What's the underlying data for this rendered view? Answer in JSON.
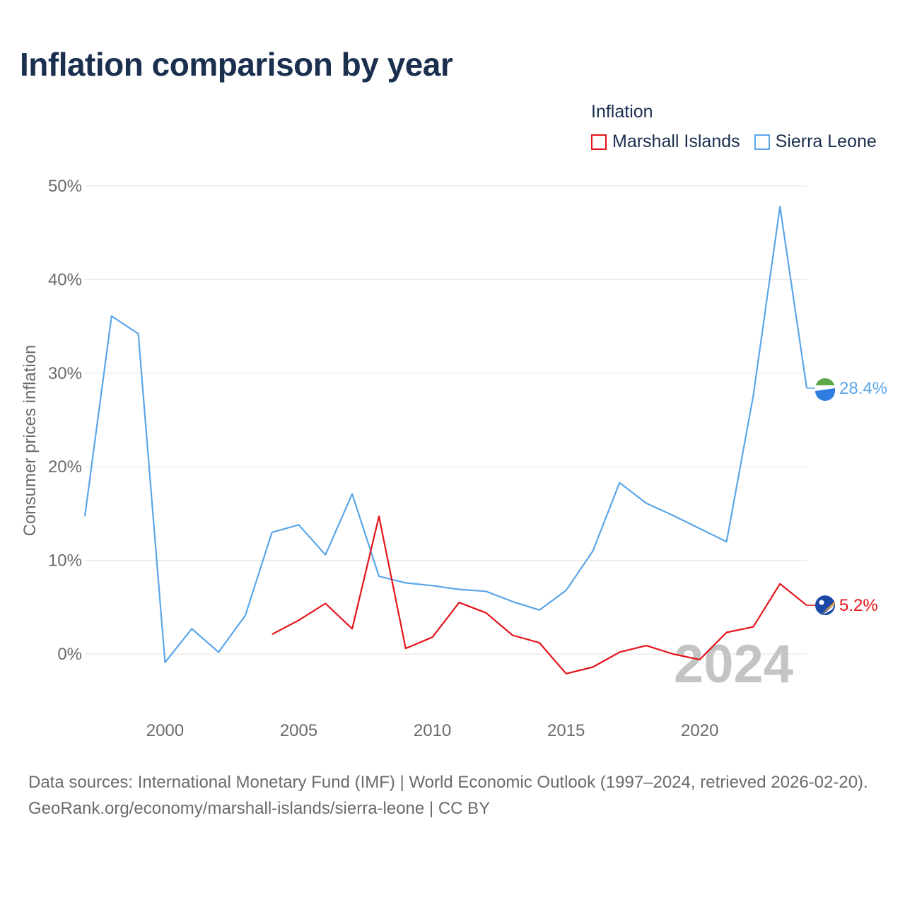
{
  "title": "Inflation comparison by year",
  "legend": {
    "title": "Inflation",
    "items": [
      {
        "name": "Marshall Islands",
        "color": "#e3141b"
      },
      {
        "name": "Sierra Leone",
        "color": "#5aa6e8"
      }
    ]
  },
  "chart_data": {
    "type": "line",
    "ylabel": "Consumer prices inflation",
    "xlabel": "",
    "xlim": [
      1997,
      2024
    ],
    "ylim": [
      -6,
      50
    ],
    "x_ticks": [
      2000,
      2005,
      2010,
      2015,
      2020
    ],
    "y_ticks": [
      {
        "value": 0,
        "label": "0%"
      },
      {
        "value": 10,
        "label": "10%"
      },
      {
        "value": 20,
        "label": "20%"
      },
      {
        "value": 30,
        "label": "30%"
      },
      {
        "value": 40,
        "label": "40%"
      },
      {
        "value": 50,
        "label": "50%"
      }
    ],
    "year_watermark": "2024",
    "series": [
      {
        "name": "Marshall Islands",
        "color": "#e3141b",
        "end_label": "5.2%",
        "x": [
          2004,
          2005,
          2006,
          2007,
          2008,
          2009,
          2010,
          2011,
          2012,
          2013,
          2014,
          2015,
          2016,
          2017,
          2018,
          2019,
          2020,
          2021,
          2022,
          2023,
          2024
        ],
        "values": [
          2.1,
          3.6,
          5.4,
          2.7,
          14.7,
          0.6,
          1.8,
          5.5,
          4.4,
          2.0,
          1.2,
          -2.1,
          -1.4,
          0.2,
          0.9,
          0.0,
          -0.6,
          2.3,
          2.9,
          7.5,
          5.2
        ]
      },
      {
        "name": "Sierra Leone",
        "color": "#5aa6e8",
        "end_label": "28.4%",
        "x": [
          1997,
          1998,
          1999,
          2000,
          2001,
          2002,
          2003,
          2004,
          2005,
          2006,
          2007,
          2008,
          2009,
          2010,
          2011,
          2012,
          2013,
          2014,
          2015,
          2016,
          2017,
          2018,
          2019,
          2020,
          2021,
          2022,
          2023,
          2024
        ],
        "values": [
          14.7,
          36.1,
          34.2,
          -0.9,
          2.7,
          0.2,
          4.1,
          13.0,
          13.8,
          10.6,
          17.1,
          8.3,
          7.6,
          7.3,
          6.9,
          6.7,
          5.6,
          4.7,
          6.8,
          11.0,
          18.3,
          16.1,
          14.8,
          13.4,
          12.0,
          27.6,
          47.8,
          28.4
        ]
      }
    ]
  },
  "footer": {
    "sources": "Data sources: International Monetary Fund (IMF) | World Economic Outlook (1997–2024, retrieved 2026-02-20).",
    "credit": "GeoRank.org/economy/marshall-islands/sierra-leone | CC BY"
  }
}
